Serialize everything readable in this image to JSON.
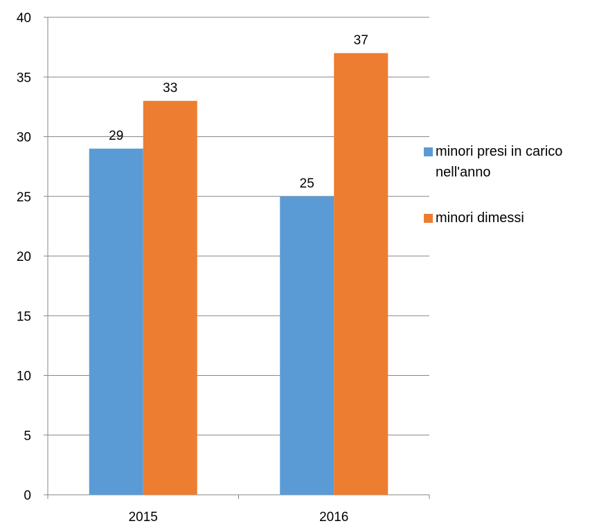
{
  "chart_data": {
    "type": "bar",
    "title": "",
    "xlabel": "",
    "ylabel": "",
    "categories": [
      "2015",
      "2016"
    ],
    "series": [
      {
        "name": "minori presi in carico nell'anno",
        "values": [
          29,
          25
        ],
        "color": "#5B9BD5"
      },
      {
        "name": "minori dimessi",
        "values": [
          33,
          37
        ],
        "color": "#ED7D31"
      }
    ],
    "ylim": [
      0,
      40
    ],
    "yticks": [
      0,
      5,
      10,
      15,
      20,
      25,
      30,
      35,
      40
    ],
    "grid": true,
    "data_labels": true,
    "legend_position": "right"
  }
}
